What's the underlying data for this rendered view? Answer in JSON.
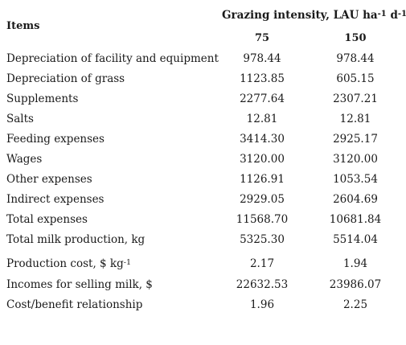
{
  "header": {
    "items_label": "Items",
    "group_label": "Grazing intensity, LAU ha",
    "group_sup1": "-1",
    "group_mid": " d",
    "group_sup2": "-1",
    "col1": "75",
    "col2": "150"
  },
  "rows": [
    {
      "label": "Depreciation of facility and equipment",
      "v75": "978.44",
      "v150": "978.44"
    },
    {
      "label": "Depreciation of grass",
      "v75": "1123.85",
      "v150": "605.15"
    },
    {
      "label": "Supplements",
      "v75": "2277.64",
      "v150": "2307.21"
    },
    {
      "label": "Salts",
      "v75": "12.81",
      "v150": "12.81"
    },
    {
      "label": "Feeding expenses",
      "v75": "3414.30",
      "v150": "2925.17"
    },
    {
      "label": "Wages",
      "v75": "3120.00",
      "v150": "3120.00"
    },
    {
      "label": "Other expenses",
      "v75": "1126.91",
      "v150": "1053.54"
    },
    {
      "label": "Indirect expenses",
      "v75": "2929.05",
      "v150": "2604.69"
    },
    {
      "label": "Total expenses",
      "v75": "11568.70",
      "v150": "10681.84"
    },
    {
      "label": "Total milk production, kg",
      "v75": "5325.30",
      "v150": "5514.04"
    },
    {
      "label": "Production cost, $ kg",
      "label_sup": "-1",
      "v75": "2.17",
      "v150": "1.94"
    },
    {
      "label": "Incomes for selling milk, $",
      "v75": "22632.53",
      "v150": "23986.07"
    },
    {
      "label": "Cost/benefit relationship",
      "v75": "1.96",
      "v150": "2.25"
    }
  ]
}
